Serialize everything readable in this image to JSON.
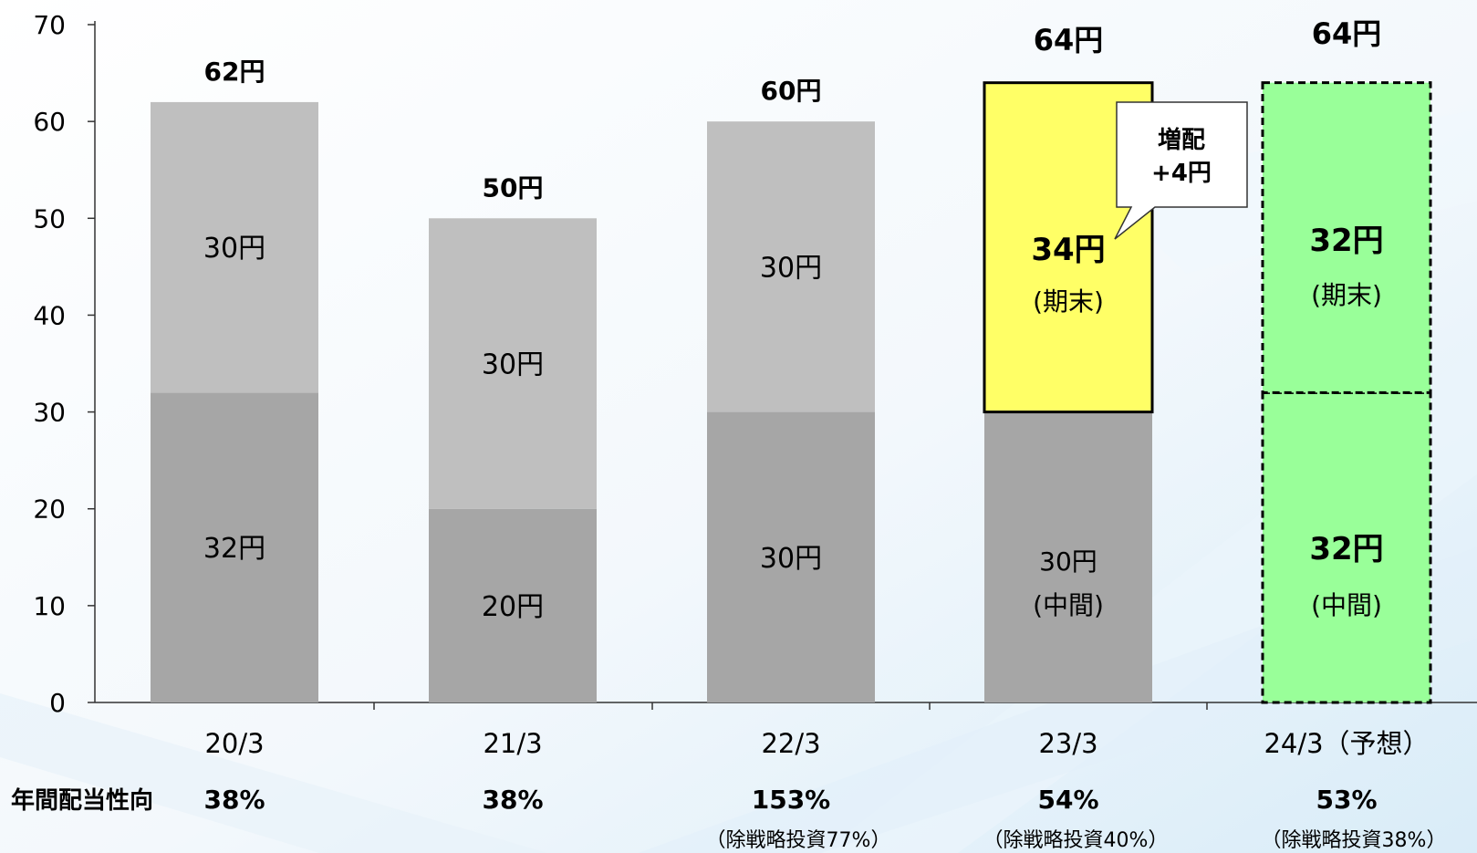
{
  "chart_data": {
    "type": "bar",
    "stacked": true,
    "ylim": [
      0,
      70
    ],
    "yticks": [
      0,
      10,
      20,
      30,
      40,
      50,
      60,
      70
    ],
    "categories": [
      "20/3",
      "21/3",
      "22/3",
      "23/3",
      "24/3（予想）"
    ],
    "series": [
      {
        "values": [
          32,
          20,
          30,
          30,
          32
        ]
      },
      {
        "values": [
          30,
          30,
          30,
          34,
          32
        ]
      }
    ],
    "segment_labels": [
      [
        {
          "lines": [
            "32円"
          ]
        },
        {
          "lines": [
            "30円"
          ]
        }
      ],
      [
        {
          "lines": [
            "20円"
          ]
        },
        {
          "lines": [
            "30円"
          ]
        }
      ],
      [
        {
          "lines": [
            "30円"
          ]
        },
        {
          "lines": [
            "30円"
          ]
        }
      ],
      [
        {
          "lines": [
            "30円",
            "(中間)"
          ]
        },
        {
          "lines": [
            "34円",
            "(期末)"
          ]
        }
      ],
      [
        {
          "lines": [
            "32円",
            "(中間)"
          ]
        },
        {
          "lines": [
            "32円",
            "(期末)"
          ]
        }
      ]
    ],
    "totals": [
      "62円",
      "50円",
      "60円",
      "64円",
      "64円"
    ],
    "annotation": {
      "lines": [
        "増配",
        "+4円"
      ]
    },
    "payout_row": {
      "label": "年間配当性向",
      "values": [
        "38%",
        "38%",
        "153%",
        "54%",
        "53%"
      ],
      "notes": [
        "",
        "",
        "（除戦略投資77%）",
        "（除戦略投資40%）",
        "（除戦略投資38%）"
      ]
    },
    "colors": {
      "dark_gray": "#a6a6a6",
      "light_gray": "#bfbfbf",
      "highlight_yellow": "#ffff66",
      "forecast_green": "#99ff99"
    }
  }
}
